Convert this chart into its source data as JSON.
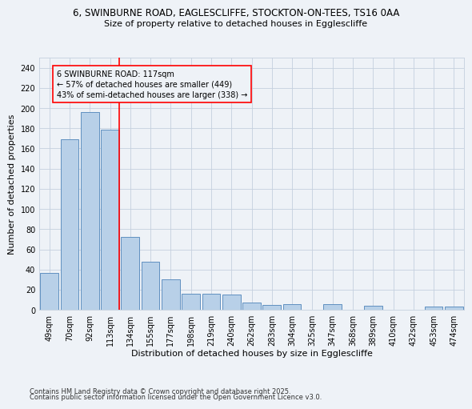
{
  "title_line1": "6, SWINBURNE ROAD, EAGLESCLIFFE, STOCKTON-ON-TEES, TS16 0AA",
  "title_line2": "Size of property relative to detached houses in Egglescliffe",
  "xlabel": "Distribution of detached houses by size in Egglescliffe",
  "ylabel": "Number of detached properties",
  "categories": [
    "49sqm",
    "70sqm",
    "92sqm",
    "113sqm",
    "134sqm",
    "155sqm",
    "177sqm",
    "198sqm",
    "219sqm",
    "240sqm",
    "262sqm",
    "283sqm",
    "304sqm",
    "325sqm",
    "347sqm",
    "368sqm",
    "389sqm",
    "410sqm",
    "432sqm",
    "453sqm",
    "474sqm"
  ],
  "values": [
    37,
    169,
    196,
    179,
    72,
    48,
    30,
    16,
    16,
    15,
    7,
    5,
    6,
    0,
    6,
    0,
    4,
    0,
    0,
    3,
    3
  ],
  "bar_color": "#b8d0e8",
  "bar_edge_color": "#6090c0",
  "bar_edge_width": 0.7,
  "ref_line_index": 3,
  "ref_line_color": "red",
  "annotation_line1": "6 SWINBURNE ROAD: 117sqm",
  "annotation_line2": "← 57% of detached houses are smaller (449)",
  "annotation_line3": "43% of semi-detached houses are larger (338) →",
  "annotation_box_color": "red",
  "bg_color": "#eef2f7",
  "grid_color": "#c5d0de",
  "ylim": [
    0,
    250
  ],
  "yticks": [
    0,
    20,
    40,
    60,
    80,
    100,
    120,
    140,
    160,
    180,
    200,
    220,
    240
  ],
  "footer1": "Contains HM Land Registry data © Crown copyright and database right 2025.",
  "footer2": "Contains public sector information licensed under the Open Government Licence v3.0.",
  "title_fontsize": 8.5,
  "subtitle_fontsize": 8,
  "axis_label_fontsize": 8,
  "tick_fontsize": 7,
  "annotation_fontsize": 7,
  "footer_fontsize": 6
}
